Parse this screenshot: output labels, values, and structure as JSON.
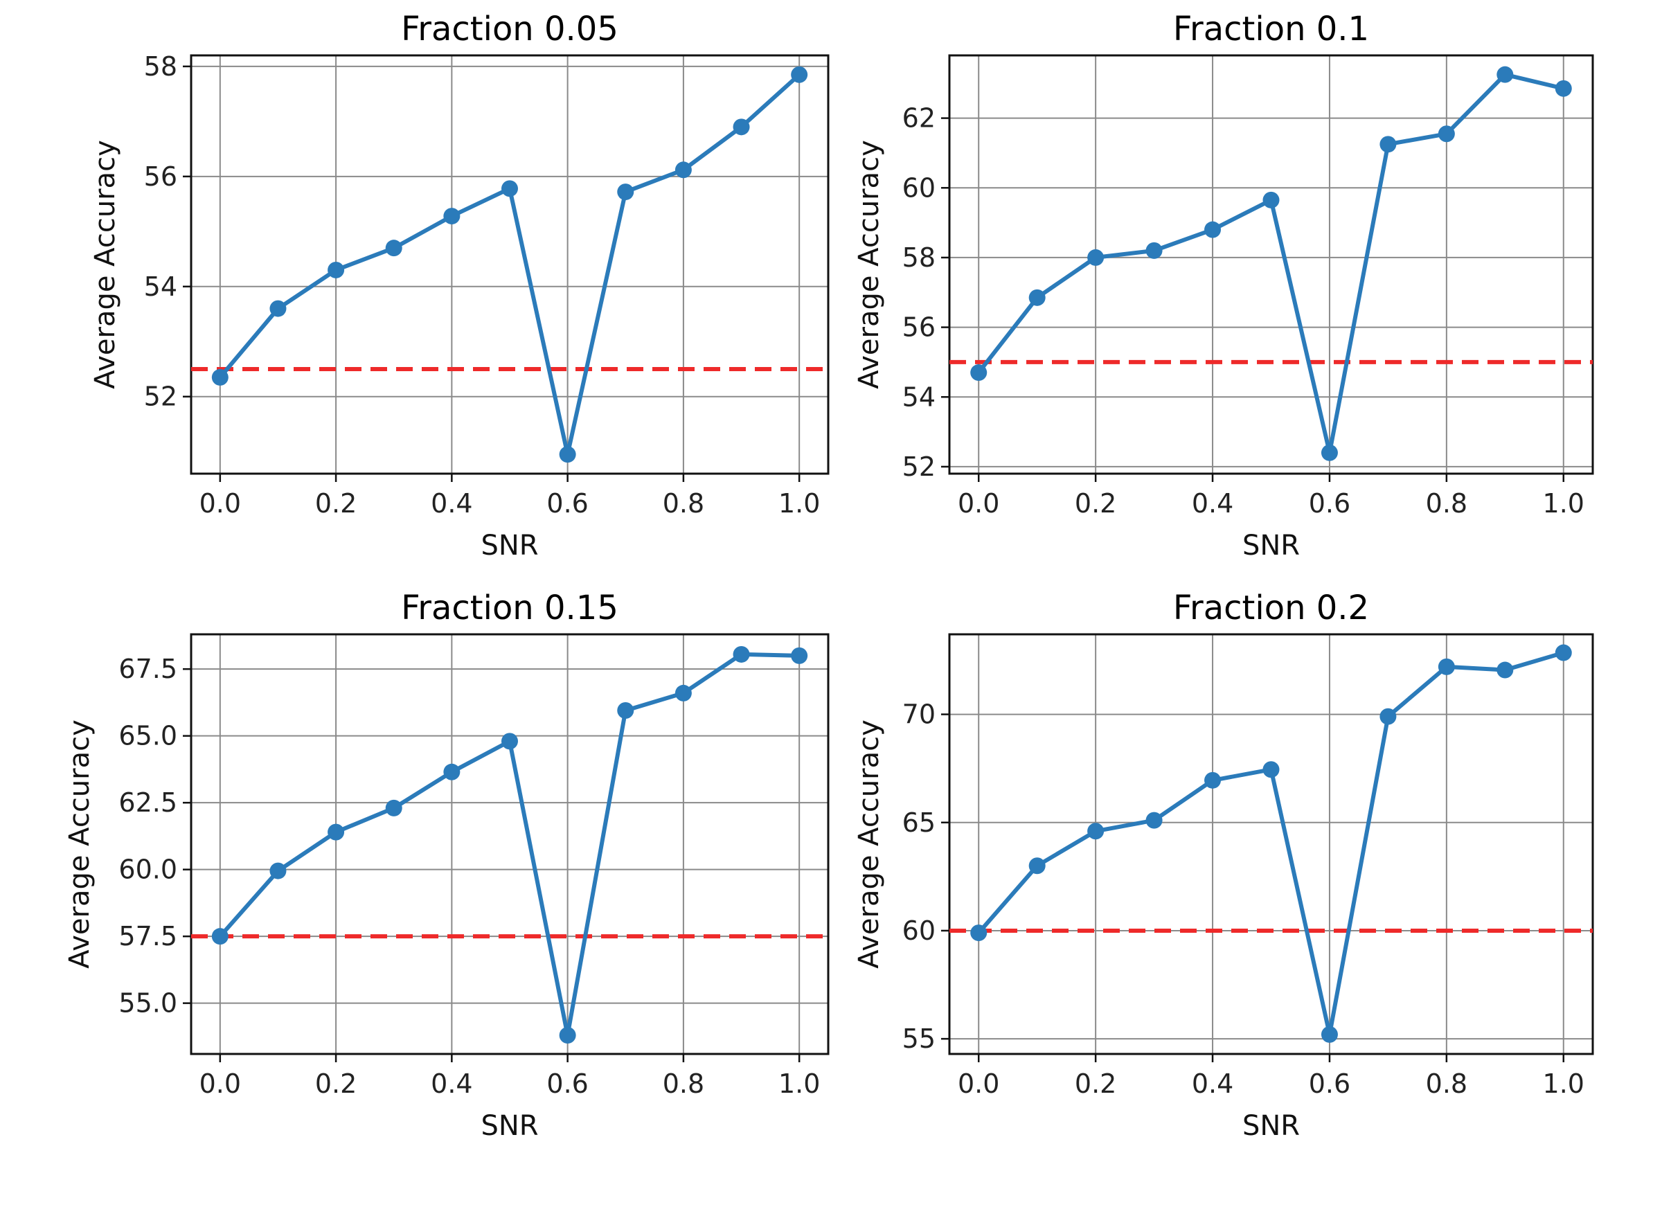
{
  "chart_data": [
    {
      "type": "line",
      "title": "Fraction 0.05",
      "xlabel": "SNR",
      "ylabel": "Average Accuracy",
      "x": [
        0.0,
        0.1,
        0.2,
        0.3,
        0.4,
        0.5,
        0.6,
        0.7,
        0.8,
        0.9,
        1.0
      ],
      "values": [
        52.35,
        53.6,
        54.3,
        54.7,
        55.28,
        55.78,
        50.95,
        55.72,
        56.12,
        56.9,
        57.85
      ],
      "reference_line": 52.5,
      "xlim": [
        -0.05,
        1.05
      ],
      "ylim": [
        50.6,
        58.2
      ],
      "xticks": [
        0.0,
        0.2,
        0.4,
        0.6,
        0.8,
        1.0
      ],
      "xtick_labels": [
        "0.0",
        "0.2",
        "0.4",
        "0.6",
        "0.8",
        "1.0"
      ],
      "yticks": [
        52,
        54,
        56,
        58
      ],
      "ytick_labels": [
        "52",
        "54",
        "56",
        "58"
      ],
      "grid": true
    },
    {
      "type": "line",
      "title": "Fraction 0.1",
      "xlabel": "SNR",
      "ylabel": "Average Accuracy",
      "x": [
        0.0,
        0.1,
        0.2,
        0.3,
        0.4,
        0.5,
        0.6,
        0.7,
        0.8,
        0.9,
        1.0
      ],
      "values": [
        54.7,
        56.85,
        58.0,
        58.2,
        58.8,
        59.65,
        52.4,
        61.25,
        61.55,
        63.25,
        62.85
      ],
      "reference_line": 55.0,
      "xlim": [
        -0.05,
        1.05
      ],
      "ylim": [
        51.8,
        63.8
      ],
      "xticks": [
        0.0,
        0.2,
        0.4,
        0.6,
        0.8,
        1.0
      ],
      "xtick_labels": [
        "0.0",
        "0.2",
        "0.4",
        "0.6",
        "0.8",
        "1.0"
      ],
      "yticks": [
        52,
        54,
        56,
        58,
        60,
        62
      ],
      "ytick_labels": [
        "52",
        "54",
        "56",
        "58",
        "60",
        "62"
      ],
      "grid": true
    },
    {
      "type": "line",
      "title": "Fraction 0.15",
      "xlabel": "SNR",
      "ylabel": "Average Accuracy",
      "x": [
        0.0,
        0.1,
        0.2,
        0.3,
        0.4,
        0.5,
        0.6,
        0.7,
        0.8,
        0.9,
        1.0
      ],
      "values": [
        57.5,
        59.95,
        61.4,
        62.3,
        63.65,
        64.8,
        53.8,
        65.95,
        66.6,
        68.05,
        68.0
      ],
      "reference_line": 57.5,
      "xlim": [
        -0.05,
        1.05
      ],
      "ylim": [
        53.1,
        68.8
      ],
      "xticks": [
        0.0,
        0.2,
        0.4,
        0.6,
        0.8,
        1.0
      ],
      "xtick_labels": [
        "0.0",
        "0.2",
        "0.4",
        "0.6",
        "0.8",
        "1.0"
      ],
      "yticks": [
        55.0,
        57.5,
        60.0,
        62.5,
        65.0,
        67.5
      ],
      "ytick_labels": [
        "55.0",
        "57.5",
        "60.0",
        "62.5",
        "65.0",
        "67.5"
      ],
      "grid": true
    },
    {
      "type": "line",
      "title": "Fraction 0.2",
      "xlabel": "SNR",
      "ylabel": "Average Accuracy",
      "x": [
        0.0,
        0.1,
        0.2,
        0.3,
        0.4,
        0.5,
        0.6,
        0.7,
        0.8,
        0.9,
        1.0
      ],
      "values": [
        59.9,
        63.0,
        64.6,
        65.1,
        66.95,
        67.45,
        55.2,
        69.9,
        72.2,
        72.05,
        72.85
      ],
      "reference_line": 60.0,
      "xlim": [
        -0.05,
        1.05
      ],
      "ylim": [
        54.3,
        73.7
      ],
      "xticks": [
        0.0,
        0.2,
        0.4,
        0.6,
        0.8,
        1.0
      ],
      "xtick_labels": [
        "0.0",
        "0.2",
        "0.4",
        "0.6",
        "0.8",
        "1.0"
      ],
      "yticks": [
        55,
        60,
        65,
        70
      ],
      "ytick_labels": [
        "55",
        "60",
        "65",
        "70"
      ],
      "grid": true
    }
  ],
  "colors": {
    "series": "#2b7bba",
    "reference_line": "#ee2a2a",
    "grid": "#8a8a8a",
    "frame": "#111111"
  }
}
